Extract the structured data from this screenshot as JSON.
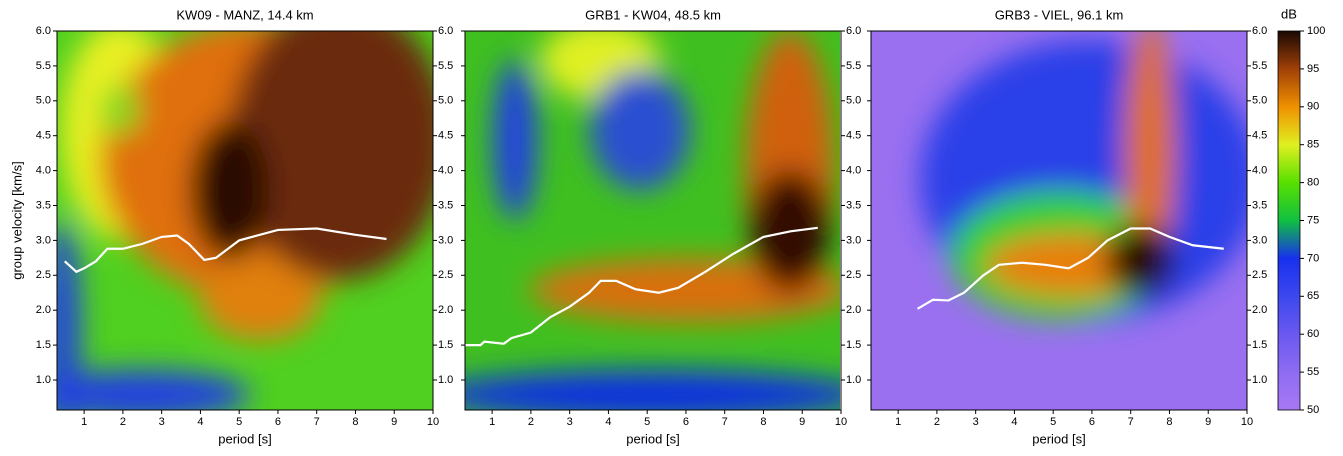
{
  "chart_data": [
    {
      "type": "line",
      "title": "KW09 - MANZ, 14.4 km",
      "xlabel": "period [s]",
      "ylabel": "group velocity [km/s]",
      "x": [
        0.5,
        0.6,
        0.8,
        1.0,
        1.3,
        1.6,
        2.0,
        2.5,
        3.0,
        3.4,
        3.7,
        4.1,
        4.4,
        5.0,
        6.0,
        7.0,
        8.0,
        8.8
      ],
      "values": [
        2.7,
        2.65,
        2.55,
        2.6,
        2.7,
        2.88,
        2.88,
        2.95,
        3.05,
        3.07,
        2.95,
        2.72,
        2.75,
        3.0,
        3.15,
        3.17,
        3.08,
        3.02
      ],
      "color": "#ffffff",
      "xlim": [
        0.3,
        10
      ],
      "ylim": [
        0.57,
        6.0
      ],
      "xticks": [
        1,
        2,
        3,
        4,
        5,
        6,
        7,
        8,
        9,
        10
      ],
      "yticks": [
        {
          "value": 1,
          "label": "1.0"
        },
        1.5,
        {
          "value": 2,
          "label": "2.0"
        },
        2.5,
        {
          "value": 3,
          "label": "3.0"
        },
        3.5,
        {
          "value": 4,
          "label": "4.0"
        },
        4.5,
        {
          "value": 5,
          "label": "5.0"
        },
        5.5,
        {
          "value": 6,
          "label": "6.0"
        }
      ]
    },
    {
      "type": "line",
      "title": "GRB1 - KW04, 48.5 km",
      "xlabel": "period [s]",
      "x": [
        0.3,
        0.7,
        0.8,
        1.3,
        1.5,
        2.0,
        2.5,
        3.0,
        3.5,
        3.8,
        4.2,
        4.7,
        5.3,
        5.8,
        6.5,
        7.2,
        8.0,
        8.7,
        9.4
      ],
      "values": [
        1.5,
        1.5,
        1.55,
        1.52,
        1.6,
        1.68,
        1.9,
        2.05,
        2.25,
        2.42,
        2.42,
        2.3,
        2.25,
        2.32,
        2.55,
        2.8,
        3.05,
        3.13,
        3.18
      ],
      "color": "#ffffff",
      "xlim": [
        0.3,
        10
      ],
      "ylim": [
        0.57,
        6.0
      ],
      "xticks": [
        1,
        2,
        3,
        4,
        5,
        6,
        7,
        8,
        9,
        10
      ],
      "yticks": [
        {
          "value": 1,
          "label": "1.0"
        },
        1.5,
        {
          "value": 2,
          "label": "2.0"
        },
        2.5,
        {
          "value": 3,
          "label": "3.0"
        },
        3.5,
        {
          "value": 4,
          "label": "4.0"
        },
        4.5,
        {
          "value": 5,
          "label": "5.0"
        },
        5.5,
        {
          "value": 6,
          "label": "6.0"
        }
      ]
    },
    {
      "type": "line",
      "title": "GRB3 - VIEL, 96.1 km",
      "xlabel": "period [s]",
      "x": [
        1.5,
        1.9,
        2.3,
        2.7,
        3.2,
        3.6,
        4.2,
        4.8,
        5.4,
        5.9,
        6.4,
        7.0,
        7.5,
        8.0,
        8.6,
        9.4
      ],
      "values": [
        2.02,
        2.15,
        2.14,
        2.25,
        2.5,
        2.65,
        2.68,
        2.65,
        2.6,
        2.75,
        3.0,
        3.17,
        3.17,
        3.05,
        2.93,
        2.88
      ],
      "color": "#ffffff",
      "xlim": [
        0.3,
        10
      ],
      "ylim": [
        0.57,
        6.0
      ],
      "xticks": [
        1,
        2,
        3,
        4,
        5,
        6,
        7,
        8,
        9,
        10
      ],
      "yticks": [
        {
          "value": 1,
          "label": "1.0"
        },
        1.5,
        {
          "value": 2,
          "label": "2.0"
        },
        2.5,
        {
          "value": 3,
          "label": "3.0"
        },
        3.5,
        {
          "value": 4,
          "label": "4.0"
        },
        4.5,
        {
          "value": 5,
          "label": "5.0"
        },
        5.5,
        {
          "value": 6,
          "label": "6.0"
        }
      ]
    }
  ],
  "colorbar": {
    "label": "dB",
    "ylim": [
      50,
      100
    ],
    "yticks": [
      50,
      55,
      60,
      65,
      70,
      75,
      80,
      85,
      90,
      95,
      100
    ]
  }
}
